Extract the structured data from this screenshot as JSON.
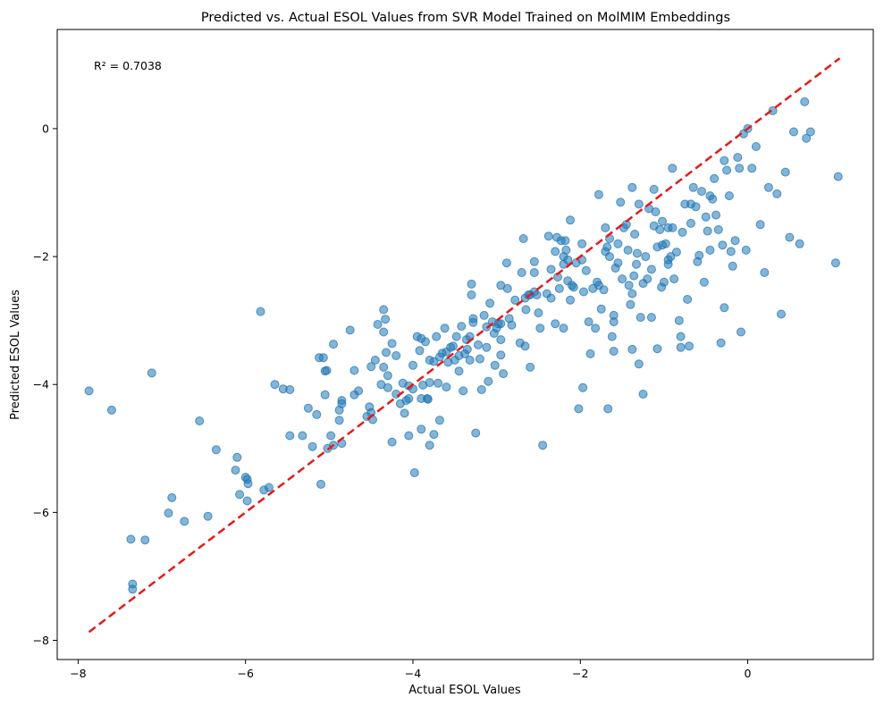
{
  "chart_data": {
    "type": "scatter",
    "title": "Predicted vs. Actual ESOL Values from SVR Model Trained on MolMIM Embeddings",
    "xlabel": "Actual ESOL Values",
    "ylabel": "Predicted ESOL Values",
    "annotation": "R² = 0.7038",
    "xlim": [
      -8.25,
      1.5
    ],
    "ylim": [
      -8.3,
      1.55
    ],
    "xticks": [
      -8,
      -6,
      -4,
      -2,
      0
    ],
    "yticks": [
      -8,
      -6,
      -4,
      -2,
      0
    ],
    "xtick_labels": [
      "−8",
      "−6",
      "−4",
      "−2",
      "0"
    ],
    "ytick_labels": [
      "−8",
      "−6",
      "−4",
      "−2",
      "0"
    ],
    "reference_line": {
      "x": [
        -7.87,
        1.1
      ],
      "y": [
        -7.87,
        1.1
      ],
      "style": "dashed",
      "color": "#e41a1c"
    },
    "grid": false,
    "point_color": "#1f77b4",
    "points": [
      [
        -7.87,
        -4.1
      ],
      [
        -7.6,
        -4.4
      ],
      [
        -7.12,
        -3.82
      ],
      [
        -7.37,
        -6.42
      ],
      [
        -7.2,
        -6.43
      ],
      [
        -7.35,
        -7.12
      ],
      [
        -7.35,
        -7.2
      ],
      [
        -6.88,
        -5.77
      ],
      [
        -6.92,
        -6.01
      ],
      [
        -6.73,
        -6.14
      ],
      [
        -6.45,
        -6.06
      ],
      [
        -6.55,
        -4.57
      ],
      [
        -6.35,
        -5.02
      ],
      [
        -6.1,
        -5.14
      ],
      [
        -6.12,
        -5.34
      ],
      [
        -6.07,
        -5.72
      ],
      [
        -6.0,
        -5.45
      ],
      [
        -5.98,
        -5.48
      ],
      [
        -5.97,
        -5.55
      ],
      [
        -5.98,
        -5.82
      ],
      [
        -5.78,
        -5.65
      ],
      [
        -5.72,
        -5.61
      ],
      [
        -5.82,
        -2.86
      ],
      [
        -5.65,
        -4.0
      ],
      [
        -5.55,
        -4.07
      ],
      [
        -5.47,
        -4.08
      ],
      [
        -5.47,
        -4.8
      ],
      [
        -5.32,
        -4.8
      ],
      [
        -5.25,
        -4.37
      ],
      [
        -5.2,
        -4.97
      ],
      [
        -5.15,
        -4.47
      ],
      [
        -5.1,
        -5.56
      ],
      [
        -5.12,
        -3.58
      ],
      [
        -5.07,
        -3.58
      ],
      [
        -5.05,
        -3.79
      ],
      [
        -5.03,
        -3.78
      ],
      [
        -5.05,
        -4.16
      ],
      [
        -5.02,
        -5.0
      ],
      [
        -4.98,
        -4.8
      ],
      [
        -4.95,
        -4.95
      ],
      [
        -4.95,
        -3.37
      ],
      [
        -4.88,
        -4.4
      ],
      [
        -4.85,
        -4.25
      ],
      [
        -4.88,
        -4.56
      ],
      [
        -4.85,
        -4.92
      ],
      [
        -4.85,
        -4.3
      ],
      [
        -4.75,
        -3.15
      ],
      [
        -4.7,
        -3.78
      ],
      [
        -4.7,
        -4.16
      ],
      [
        -4.65,
        -4.1
      ],
      [
        -4.55,
        -4.5
      ],
      [
        -4.5,
        -3.72
      ],
      [
        -4.48,
        -4.55
      ],
      [
        -4.52,
        -4.35
      ],
      [
        -4.5,
        -4.44
      ],
      [
        -4.45,
        -3.62
      ],
      [
        -4.42,
        -3.06
      ],
      [
        -4.38,
        -4.0
      ],
      [
        -4.35,
        -3.73
      ],
      [
        -4.35,
        -2.83
      ],
      [
        -4.33,
        -2.98
      ],
      [
        -4.35,
        -3.18
      ],
      [
        -4.3,
        -4.05
      ],
      [
        -4.32,
        -3.5
      ],
      [
        -4.3,
        -3.86
      ],
      [
        -4.25,
        -3.36
      ],
      [
        -4.25,
        -4.9
      ],
      [
        -4.2,
        -3.55
      ],
      [
        -4.2,
        -4.15
      ],
      [
        -4.15,
        -4.3
      ],
      [
        -4.12,
        -3.98
      ],
      [
        -4.1,
        -4.45
      ],
      [
        -4.08,
        -4.25
      ],
      [
        -4.05,
        -4.02
      ],
      [
        -4.05,
        -4.22
      ],
      [
        -4.05,
        -4.8
      ],
      [
        -4.0,
        -3.7
      ],
      [
        -4.0,
        -4.07
      ],
      [
        -3.98,
        -5.38
      ],
      [
        -3.95,
        -3.25
      ],
      [
        -3.92,
        -3.47
      ],
      [
        -3.9,
        -3.28
      ],
      [
        -3.88,
        -4.01
      ],
      [
        -3.9,
        -4.7
      ],
      [
        -3.85,
        -3.33
      ],
      [
        -3.83,
        -4.22
      ],
      [
        -3.82,
        -4.23
      ],
      [
        -3.8,
        -3.62
      ],
      [
        -3.8,
        -3.97
      ],
      [
        -3.8,
        -4.95
      ],
      [
        -3.75,
        -3.64
      ],
      [
        -3.75,
        -4.78
      ],
      [
        -3.72,
        -3.25
      ],
      [
        -3.7,
        -3.98
      ],
      [
        -3.68,
        -3.57
      ],
      [
        -3.68,
        -4.56
      ],
      [
        -3.65,
        -3.51
      ],
      [
        -3.62,
        -3.12
      ],
      [
        -3.6,
        -3.49
      ],
      [
        -3.58,
        -3.65
      ],
      [
        -3.55,
        -3.42
      ],
      [
        -3.52,
        -3.4
      ],
      [
        -3.5,
        -3.62
      ],
      [
        -3.48,
        -3.25
      ],
      [
        -3.45,
        -3.79
      ],
      [
        -3.45,
        -3.55
      ],
      [
        -3.42,
        -3.09
      ],
      [
        -3.4,
        -4.1
      ],
      [
        -3.38,
        -3.52
      ],
      [
        -3.36,
        -3.3
      ],
      [
        -3.35,
        -3.45
      ],
      [
        -3.32,
        -3.25
      ],
      [
        -3.32,
        -3.62
      ],
      [
        -3.3,
        -2.43
      ],
      [
        -3.3,
        -2.6
      ],
      [
        -3.28,
        -2.97
      ],
      [
        -3.28,
        -3.03
      ],
      [
        -3.25,
        -4.76
      ],
      [
        -3.22,
        -3.38
      ],
      [
        -3.2,
        -3.6
      ],
      [
        -3.18,
        -4.08
      ],
      [
        -3.15,
        -2.92
      ],
      [
        -3.12,
        -3.1
      ],
      [
        -3.12,
        -3.42
      ],
      [
        -3.1,
        -3.95
      ],
      [
        -3.08,
        -2.73
      ],
      [
        -3.05,
        -3.02
      ],
      [
        -3.03,
        -3.2
      ],
      [
        -3.02,
        -3.7
      ],
      [
        -3.0,
        -3.12
      ],
      [
        -2.98,
        -3.05
      ],
      [
        -2.95,
        -3.3
      ],
      [
        -2.95,
        -3.05
      ],
      [
        -2.95,
        -3.54
      ],
      [
        -2.92,
        -3.83
      ],
      [
        -2.88,
        -2.1
      ],
      [
        -2.87,
        -2.5
      ],
      [
        -2.85,
        -2.97
      ],
      [
        -2.82,
        -3.07
      ],
      [
        -2.78,
        -2.68
      ],
      [
        -2.72,
        -3.35
      ],
      [
        -2.7,
        -2.25
      ],
      [
        -2.68,
        -1.72
      ],
      [
        -2.66,
        -2.65
      ],
      [
        -2.66,
        -3.4
      ],
      [
        -2.65,
        -2.83
      ],
      [
        -2.62,
        -2.6
      ],
      [
        -2.6,
        -3.73
      ],
      [
        -2.55,
        -2.25
      ],
      [
        -2.55,
        -2.08
      ],
      [
        -2.55,
        -2.55
      ],
      [
        -2.52,
        -2.6
      ],
      [
        -2.5,
        -2.88
      ],
      [
        -2.48,
        -3.12
      ],
      [
        -2.45,
        -4.95
      ],
      [
        -2.4,
        -2.58
      ],
      [
        -2.38,
        -1.68
      ],
      [
        -2.35,
        -2.2
      ],
      [
        -2.35,
        -2.65
      ],
      [
        -2.3,
        -1.92
      ],
      [
        -2.3,
        -3.05
      ],
      [
        -2.28,
        -1.7
      ],
      [
        -2.27,
        -2.32
      ],
      [
        -2.25,
        -2.5
      ],
      [
        -2.23,
        -1.75
      ],
      [
        -2.2,
        -2.0
      ],
      [
        -2.2,
        -2.12
      ],
      [
        -2.2,
        -3.12
      ],
      [
        -2.18,
        -1.75
      ],
      [
        -2.17,
        -1.9
      ],
      [
        -2.15,
        -2.05
      ],
      [
        -2.15,
        -2.38
      ],
      [
        -2.12,
        -2.68
      ],
      [
        -2.12,
        -1.43
      ],
      [
        -2.1,
        -2.45
      ],
      [
        -2.08,
        -2.48
      ],
      [
        -2.05,
        -2.1
      ],
      [
        -2.02,
        -4.38
      ],
      [
        -1.98,
        -1.8
      ],
      [
        -1.98,
        -2.05
      ],
      [
        -1.97,
        -4.05
      ],
      [
        -1.96,
        -2.55
      ],
      [
        -1.93,
        -2.22
      ],
      [
        -1.9,
        -3.02
      ],
      [
        -1.88,
        -3.52
      ],
      [
        -1.85,
        -2.5
      ],
      [
        -1.82,
        -3.12
      ],
      [
        -1.8,
        -2.4
      ],
      [
        -1.78,
        -1.03
      ],
      [
        -1.78,
        -2.45
      ],
      [
        -1.75,
        -2.82
      ],
      [
        -1.72,
        -2.52
      ],
      [
        -1.7,
        -1.92
      ],
      [
        -1.7,
        -1.55
      ],
      [
        -1.68,
        -1.85
      ],
      [
        -1.67,
        -4.38
      ],
      [
        -1.65,
        -2.0
      ],
      [
        -1.65,
        -1.72
      ],
      [
        -1.62,
        -3.25
      ],
      [
        -1.6,
        -3.48
      ],
      [
        -1.6,
        -3.02
      ],
      [
        -1.58,
        -2.18
      ],
      [
        -1.55,
        -1.8
      ],
      [
        -1.55,
        -2.1
      ],
      [
        -1.52,
        -1.15
      ],
      [
        -1.5,
        -2.35
      ],
      [
        -1.48,
        -1.55
      ],
      [
        -1.45,
        -1.5
      ],
      [
        -1.43,
        -1.9
      ],
      [
        -1.42,
        -2.45
      ],
      [
        -1.4,
        -2.75
      ],
      [
        -1.38,
        -2.58
      ],
      [
        -1.38,
        -3.45
      ],
      [
        -1.36,
        -2.3
      ],
      [
        -1.35,
        -1.65
      ],
      [
        -1.33,
        -2.12
      ],
      [
        -1.32,
        -1.95
      ],
      [
        -1.3,
        -3.68
      ],
      [
        -1.3,
        -1.18
      ],
      [
        -1.28,
        -2.95
      ],
      [
        -1.25,
        -4.15
      ],
      [
        -1.25,
        -2.42
      ],
      [
        -1.22,
        -2.0
      ],
      [
        -1.2,
        -2.35
      ],
      [
        -1.18,
        -1.25
      ],
      [
        -1.15,
        -2.95
      ],
      [
        -1.12,
        -1.52
      ],
      [
        -1.1,
        -1.3
      ],
      [
        -1.08,
        -1.85
      ],
      [
        -1.08,
        -3.44
      ],
      [
        -1.05,
        -1.58
      ],
      [
        -1.03,
        -2.48
      ],
      [
        -1.02,
        -1.82
      ],
      [
        -1.02,
        -1.45
      ],
      [
        -1.0,
        -2.4
      ],
      [
        -0.98,
        -1.8
      ],
      [
        -0.95,
        -1.55
      ],
      [
        -0.95,
        -2.12
      ],
      [
        -0.92,
        -2.0
      ],
      [
        -0.9,
        -1.55
      ],
      [
        -0.88,
        -2.35
      ],
      [
        -0.85,
        -1.93
      ],
      [
        -0.82,
        -3.0
      ],
      [
        -0.8,
        -3.42
      ],
      [
        -0.78,
        -1.62
      ],
      [
        -0.75,
        -1.18
      ],
      [
        -0.72,
        -2.67
      ],
      [
        -0.7,
        -3.4
      ],
      [
        -0.68,
        -1.48
      ],
      [
        -0.65,
        -0.92
      ],
      [
        -0.62,
        -1.22
      ],
      [
        -0.6,
        -2.08
      ],
      [
        -0.58,
        -1.98
      ],
      [
        -0.55,
        -0.98
      ],
      [
        -0.52,
        -2.4
      ],
      [
        -0.5,
        -1.38
      ],
      [
        -0.48,
        -1.6
      ],
      [
        -0.45,
        -1.05
      ],
      [
        -0.42,
        -1.1
      ],
      [
        -0.4,
        -0.78
      ],
      [
        -0.38,
        -1.35
      ],
      [
        -0.35,
        -1.58
      ],
      [
        -0.32,
        -3.35
      ],
      [
        -0.3,
        -1.82
      ],
      [
        -0.28,
        -2.8
      ],
      [
        -0.25,
        -0.65
      ],
      [
        -0.22,
        -1.05
      ],
      [
        -0.2,
        -1.92
      ],
      [
        -0.18,
        -2.15
      ],
      [
        -0.15,
        -1.75
      ],
      [
        -0.12,
        -0.45
      ],
      [
        -0.1,
        -0.62
      ],
      [
        -0.08,
        -3.18
      ],
      [
        -0.05,
        -0.08
      ],
      [
        -0.02,
        -1.9
      ],
      [
        0.0,
        0.0
      ],
      [
        0.05,
        -0.62
      ],
      [
        0.1,
        -0.28
      ],
      [
        0.15,
        -1.5
      ],
      [
        0.2,
        -2.25
      ],
      [
        0.25,
        -0.92
      ],
      [
        0.3,
        0.28
      ],
      [
        0.35,
        -1.02
      ],
      [
        0.4,
        -2.9
      ],
      [
        0.45,
        -0.68
      ],
      [
        0.5,
        -1.7
      ],
      [
        0.55,
        -0.05
      ],
      [
        0.62,
        -1.8
      ],
      [
        0.68,
        0.42
      ],
      [
        0.7,
        -0.15
      ],
      [
        0.75,
        -0.05
      ],
      [
        1.05,
        -2.1
      ],
      [
        1.08,
        -0.75
      ],
      [
        -1.38,
        -0.92
      ],
      [
        -1.12,
        -0.95
      ],
      [
        -0.9,
        -0.62
      ],
      [
        -1.6,
        -2.92
      ],
      [
        -0.95,
        -2.05
      ],
      [
        -0.8,
        -3.25
      ],
      [
        -2.6,
        -2.6
      ],
      [
        -3.6,
        -4.04
      ],
      [
        -0.28,
        -0.5
      ],
      [
        -0.68,
        -1.18
      ],
      [
        -0.45,
        -1.9
      ],
      [
        -1.15,
        -2.2
      ],
      [
        -2.95,
        -2.45
      ],
      [
        -3.9,
        -4.22
      ]
    ]
  }
}
